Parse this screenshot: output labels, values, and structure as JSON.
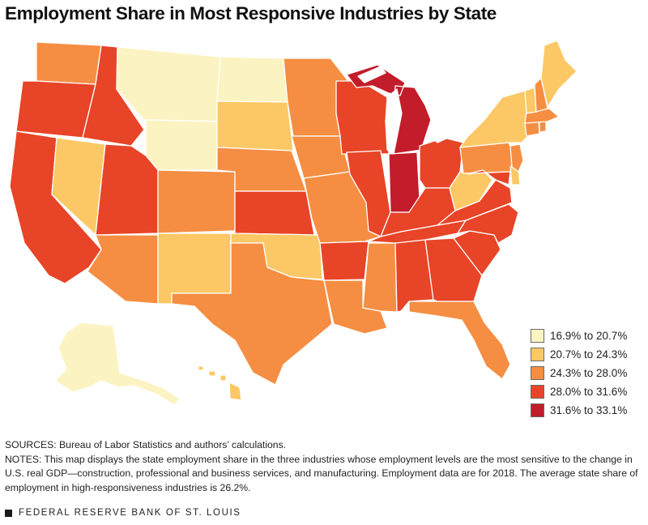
{
  "title": "Employment Share in Most Responsive Industries by State",
  "colors": {
    "c1": "#fbf3c2",
    "c2": "#fcc865",
    "c3": "#f58e42",
    "c4": "#e84427",
    "c5": "#c31c2a"
  },
  "legend": [
    {
      "label": "16.9% to 20.7%",
      "color": "#fbf3c2"
    },
    {
      "label": "20.7% to 24.3%",
      "color": "#fcc865"
    },
    {
      "label": "24.3% to 28.0%",
      "color": "#f58e42"
    },
    {
      "label": "28.0% to 31.6%",
      "color": "#e84427"
    },
    {
      "label": "31.6% to 33.1%",
      "color": "#c31c2a"
    }
  ],
  "notes": {
    "sources": "SOURCES: Bureau of Labor Statistics and authors’ calculations.",
    "notes_text": "NOTES: This map displays the state employment share in the three industries whose employment levels are the most sensitive to the change in U.S. real GDP—construction, professional and business services, and manufacturing. Employment data are for 2018. The average state share of employment in high-responsiveness industries is 26.2%."
  },
  "footer": {
    "text": "FEDERAL RESERVE BANK OF ST. LOUIS"
  }
}
